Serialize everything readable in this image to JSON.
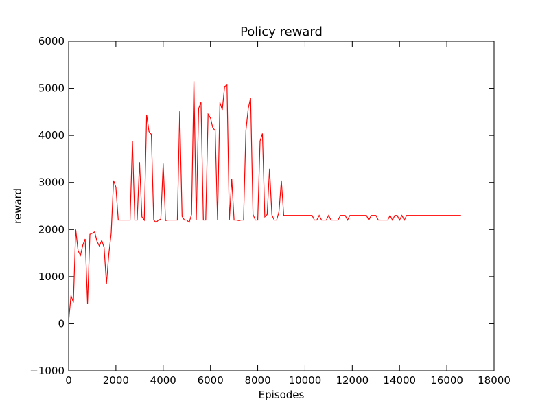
{
  "chart_data": {
    "type": "line",
    "title": "Policy reward",
    "x_label": "Episodes",
    "y_label": "reward",
    "x": [
      0,
      100,
      200,
      300,
      400,
      500,
      600,
      700,
      800,
      900,
      1000,
      1100,
      1200,
      1300,
      1400,
      1500,
      1600,
      1700,
      1800,
      1900,
      2000,
      2100,
      2600,
      2700,
      2800,
      2900,
      3000,
      3100,
      3200,
      3300,
      3400,
      3500,
      3600,
      3700,
      3800,
      3900,
      4000,
      4100,
      4200,
      4600,
      4700,
      4800,
      4900,
      5000,
      5100,
      5200,
      5300,
      5400,
      5500,
      5600,
      5700,
      5800,
      5900,
      6000,
      6100,
      6200,
      6300,
      6400,
      6500,
      6600,
      6700,
      6800,
      6900,
      7000,
      7100,
      7200,
      7300,
      7400,
      7500,
      7600,
      7700,
      7800,
      7900,
      8000,
      8100,
      8200,
      8300,
      8400,
      8500,
      8600,
      8700,
      8800,
      8900,
      9000,
      9100,
      10300,
      10400,
      10500,
      10600,
      10700,
      10900,
      11000,
      11100,
      11400,
      11500,
      11700,
      11800,
      11900,
      12600,
      12700,
      12800,
      13000,
      13100,
      13500,
      13600,
      13700,
      13800,
      13900,
      14000,
      14100,
      14200,
      14300,
      16600
    ],
    "series": [
      {
        "name": "reward",
        "color": "#ff0000",
        "values": [
          50,
          600,
          450,
          2000,
          1550,
          1450,
          1670,
          1800,
          430,
          1900,
          1920,
          1950,
          1750,
          1650,
          1770,
          1620,
          850,
          1480,
          1920,
          3040,
          2900,
          2200,
          2200,
          3880,
          2200,
          2200,
          3430,
          2270,
          2200,
          4440,
          4080,
          4020,
          2200,
          2150,
          2200,
          2220,
          3400,
          2190,
          2200,
          2200,
          4510,
          2280,
          2200,
          2200,
          2150,
          2320,
          5150,
          2200,
          4570,
          4700,
          2200,
          2200,
          4450,
          4370,
          4160,
          4100,
          2200,
          4700,
          4540,
          5040,
          5070,
          2200,
          3080,
          2200,
          2200,
          2190,
          2200,
          2200,
          4100,
          4570,
          4800,
          2320,
          2200,
          2200,
          3880,
          4040,
          2270,
          2320,
          3290,
          2310,
          2200,
          2200,
          2380,
          3040,
          2300,
          2300,
          2200,
          2200,
          2300,
          2200,
          2200,
          2300,
          2200,
          2200,
          2300,
          2300,
          2200,
          2300,
          2300,
          2200,
          2300,
          2300,
          2200,
          2200,
          2300,
          2200,
          2300,
          2300,
          2200,
          2300,
          2200,
          2300,
          2300
        ]
      }
    ],
    "xlim": [
      0,
      18000
    ],
    "xticks": [
      0,
      2000,
      4000,
      6000,
      8000,
      10000,
      12000,
      14000,
      16000,
      18000
    ],
    "ylim": [
      -1000,
      6000
    ],
    "yticks": [
      {
        "value": -1000,
        "label": "−1000"
      },
      0,
      1000,
      2000,
      3000,
      4000,
      5000,
      6000
    ]
  }
}
